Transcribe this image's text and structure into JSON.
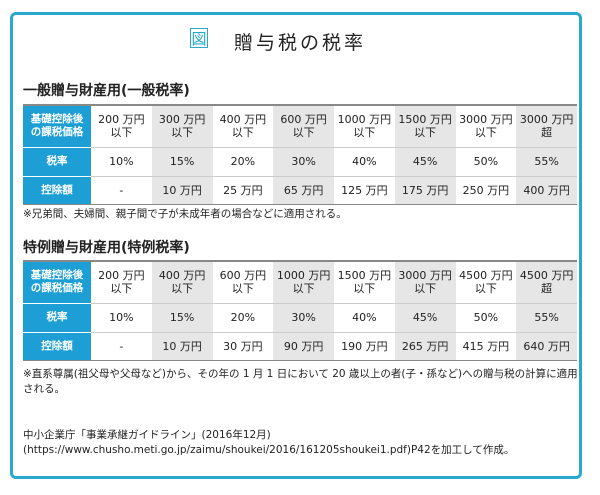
{
  "figure_label": "図",
  "title": "贈与税の税率",
  "tables": [
    {
      "heading": "一般贈与財産用(一般税率)",
      "row_labels": [
        "基礎控除後\nの課税価格",
        "税率",
        "控除額"
      ],
      "brackets": [
        [
          "200 万円",
          "以下"
        ],
        [
          "300 万円",
          "以下"
        ],
        [
          "400 万円",
          "以下"
        ],
        [
          "600 万円",
          "以下"
        ],
        [
          "1000 万円",
          "以下"
        ],
        [
          "1500 万円",
          "以下"
        ],
        [
          "3000 万円",
          "以下"
        ],
        [
          "3000 万円",
          "超"
        ]
      ],
      "rates": [
        "10%",
        "15%",
        "20%",
        "30%",
        "40%",
        "45%",
        "50%",
        "55%"
      ],
      "deductions": [
        "-",
        "10 万円",
        "25 万円",
        "65 万円",
        "125 万円",
        "175 万円",
        "250 万円",
        "400 万円"
      ],
      "note": "※兄弟間、夫婦間、親子間で子が未成年者の場合などに適用される。"
    },
    {
      "heading": "特例贈与財産用(特例税率)",
      "row_labels": [
        "基礎控除後\nの課税価格",
        "税率",
        "控除額"
      ],
      "brackets": [
        [
          "200 万円",
          "以下"
        ],
        [
          "400 万円",
          "以下"
        ],
        [
          "600 万円",
          "以下"
        ],
        [
          "1000 万円",
          "以下"
        ],
        [
          "1500 万円",
          "以下"
        ],
        [
          "3000 万円",
          "以下"
        ],
        [
          "4500 万円",
          "以下"
        ],
        [
          "4500 万円",
          "超"
        ]
      ],
      "rates": [
        "10%",
        "15%",
        "20%",
        "30%",
        "40%",
        "45%",
        "50%",
        "55%"
      ],
      "deductions": [
        "-",
        "10 万円",
        "30 万円",
        "90 万円",
        "190 万円",
        "265 万円",
        "415 万円",
        "640 万円"
      ],
      "note": "※直系尊属(祖父母や父母など)から、その年の 1 月 1 日において 20 歳以上の者(子・孫など)への贈与税の計算に適用される。"
    }
  ],
  "source": "中小企業庁「事業承継ガイドライン」(2016年12月)(https://www.chusho.meti.go.jp/zaimu/shoukei/2016/161205shoukei1.pdf)P42を加工して作成。",
  "colors": {
    "accent": "#2aa9cf",
    "header_cell": "#1d9fd6",
    "shade": "#e6e6e6"
  }
}
